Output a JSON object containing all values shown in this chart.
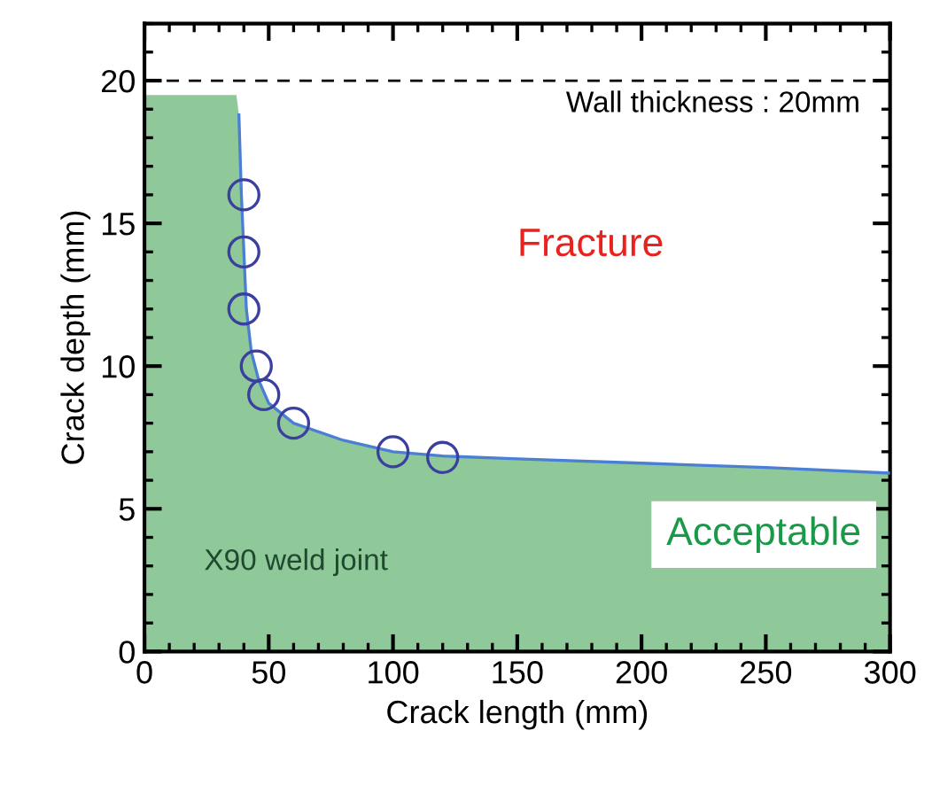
{
  "chart_data": {
    "type": "line",
    "xlabel": "Crack length (mm)",
    "ylabel": "Crack depth (mm)",
    "series": [
      {
        "type": "area",
        "color": "#8fc99a",
        "x": [
          0,
          37,
          38,
          39,
          40,
          41,
          43,
          46,
          50,
          60,
          80,
          100,
          120,
          150,
          200,
          250,
          300
        ],
        "values": [
          19.5,
          19.5,
          18.8,
          16,
          14,
          12,
          10.5,
          9.5,
          8.7,
          8,
          7.4,
          7.0,
          6.85,
          6.75,
          6.6,
          6.45,
          6.25
        ]
      },
      {
        "color": "#4a7fd4",
        "x": [
          38,
          39,
          40,
          41,
          43,
          46,
          50,
          60,
          80,
          100,
          120,
          150,
          200,
          250,
          300
        ],
        "values": [
          18.8,
          16,
          14,
          12,
          10.5,
          9.5,
          8.7,
          8,
          7.4,
          7.0,
          6.85,
          6.75,
          6.6,
          6.45,
          6.25
        ]
      },
      {
        "type": "scatter",
        "color": "#3a3fa0",
        "marker": "circle",
        "x": [
          40,
          40,
          40,
          45,
          48,
          60,
          100,
          120
        ],
        "values": [
          16,
          14,
          12,
          10,
          9,
          8,
          7,
          6.8
        ]
      }
    ],
    "xlim": [
      0,
      300
    ],
    "xticks": [
      0,
      50,
      100,
      150,
      200,
      250,
      300
    ],
    "ylim": [
      0,
      22
    ],
    "yticks": [
      0,
      5,
      10,
      15,
      20
    ],
    "ref_lines": [
      {
        "axis": "y",
        "value": 20,
        "label": "Wall thickness : 20mm",
        "color": "#000000",
        "line_style": "dashed"
      }
    ],
    "annotations": [
      "Fracture",
      "Acceptable",
      "X90 weld joint"
    ],
    "grid": false,
    "legend": false
  }
}
